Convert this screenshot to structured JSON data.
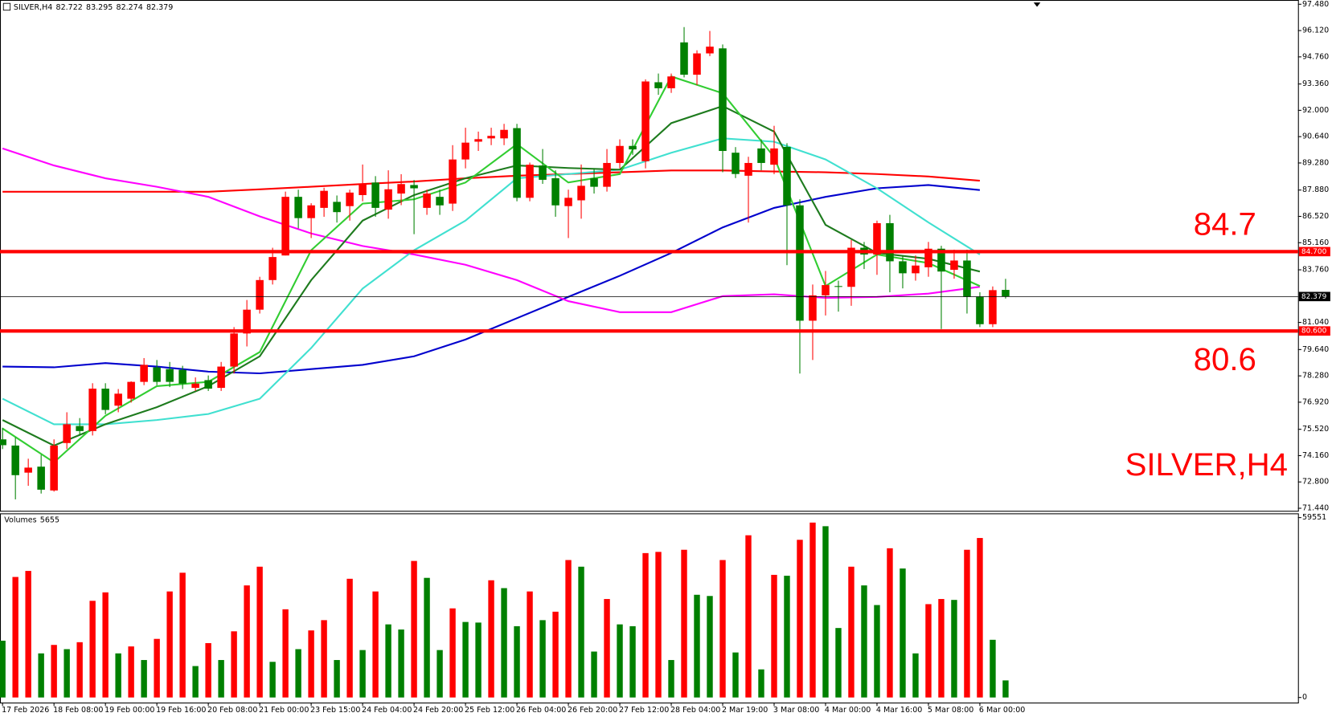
{
  "chart_data": [
    {
      "type": "candlestick",
      "title": "SILVER,H4",
      "categories": [
        "17 Feb 2026",
        null,
        null,
        null,
        "18 Feb 08:00",
        null,
        null,
        null,
        "19 Feb 00:00",
        null,
        null,
        null,
        "19 Feb 16:00",
        null,
        null,
        null,
        "20 Feb 08:00",
        null,
        null,
        null,
        "21 Feb 00:00",
        null,
        null,
        null,
        "23 Feb 15:00",
        null,
        null,
        null,
        "24 Feb 04:00",
        null,
        null,
        null,
        "24 Feb 20:00",
        null,
        null,
        null,
        "25 Feb 12:00",
        null,
        null,
        null,
        "26 Feb 04:00",
        null,
        null,
        null,
        "26 Feb 20:00",
        null,
        null,
        null,
        "27 Feb 12:00",
        null,
        null,
        null,
        "28 Feb 04:00",
        null,
        null,
        null,
        "2 Mar 19:00",
        null,
        null,
        null,
        "3 Mar 08:00",
        null,
        null,
        null,
        "4 Mar 00:00",
        null,
        null,
        null,
        "4 Mar 16:00",
        null,
        null,
        null,
        "5 Mar 08:00",
        null,
        null,
        null,
        "6 Mar 00:00",
        null,
        null
      ],
      "open": [
        75.0,
        74.68,
        73.28,
        73.59,
        72.36,
        74.81,
        75.69,
        75.43,
        77.62,
        76.74,
        77.1,
        77.97,
        78.72,
        78.63,
        78.59,
        77.66,
        78.06,
        77.66,
        78.76,
        80.47,
        81.7,
        83.23,
        84.5,
        87.53,
        86.43,
        86.96,
        87.27,
        87.05,
        87.62,
        88.27,
        86.87,
        87.7,
        88.14,
        86.96,
        87.53,
        87.18,
        89.46,
        90.38,
        90.55,
        90.55,
        91.08,
        87.48,
        89.15,
        88.49,
        87.05,
        87.35,
        88.49,
        88.05,
        89.28,
        90.16,
        89.37,
        93.45,
        93.14,
        95.51,
        93.84,
        94.94,
        95.2,
        89.81,
        88.62,
        90.03,
        89.19,
        90.11,
        87.09,
        81.13,
        82.44,
        82.92,
        82.88,
        84.9,
        84.55,
        86.17,
        84.2,
        83.58,
        83.89,
        84.85,
        83.76,
        84.24,
        82.36,
        80.95,
        82.722
      ],
      "high": [
        75.6,
        75.1,
        74.0,
        74.2,
        75.0,
        76.4,
        76.1,
        77.9,
        77.9,
        77.6,
        78.0,
        79.2,
        79.1,
        79.0,
        78.8,
        78.2,
        78.3,
        79.0,
        80.8,
        82.2,
        83.4,
        84.9,
        87.8,
        87.9,
        87.2,
        88.0,
        87.6,
        87.9,
        89.2,
        88.6,
        88.9,
        88.7,
        88.4,
        87.9,
        87.9,
        90.2,
        91.1,
        90.9,
        91.1,
        91.3,
        91.3,
        89.3,
        90.0,
        88.9,
        87.9,
        89.2,
        89.0,
        90.0,
        90.5,
        90.5,
        93.6,
        93.9,
        93.9,
        96.3,
        95.1,
        96.1,
        95.4,
        90.1,
        89.6,
        90.5,
        91.2,
        90.3,
        87.4,
        83.0,
        83.7,
        83.2,
        85.3,
        85.2,
        86.3,
        86.6,
        84.5,
        84.5,
        85.2,
        85.0,
        84.8,
        84.8,
        82.6,
        82.9,
        83.295
      ],
      "low": [
        74.5,
        71.9,
        72.6,
        72.2,
        72.3,
        74.5,
        75.2,
        75.2,
        76.3,
        76.4,
        76.9,
        77.8,
        77.8,
        77.7,
        77.6,
        77.5,
        77.5,
        77.5,
        78.4,
        79.8,
        81.5,
        83.0,
        84.5,
        85.9,
        85.4,
        86.5,
        86.2,
        86.3,
        87.3,
        86.5,
        86.4,
        87.1,
        85.6,
        86.6,
        86.6,
        86.8,
        89.0,
        89.9,
        90.2,
        90.2,
        87.3,
        87.3,
        88.2,
        86.5,
        85.4,
        86.4,
        87.7,
        87.8,
        89.0,
        89.7,
        89.0,
        92.8,
        92.9,
        93.7,
        93.3,
        94.8,
        88.8,
        88.5,
        86.2,
        88.9,
        88.7,
        84.0,
        78.4,
        79.1,
        81.4,
        81.6,
        81.9,
        83.8,
        83.5,
        82.6,
        82.8,
        83.2,
        83.4,
        80.7,
        83.3,
        81.5,
        80.8,
        80.8,
        82.274
      ],
      "close": [
        74.7,
        73.15,
        73.54,
        72.4,
        74.68,
        75.78,
        75.43,
        77.62,
        76.52,
        77.36,
        77.97,
        78.85,
        77.97,
        77.97,
        77.88,
        77.88,
        77.62,
        78.76,
        80.47,
        81.7,
        83.23,
        84.42,
        87.53,
        86.43,
        87.09,
        87.84,
        86.74,
        87.75,
        88.19,
        86.96,
        87.92,
        88.19,
        87.97,
        87.7,
        87.09,
        89.46,
        90.33,
        90.51,
        90.68,
        90.99,
        87.48,
        89.19,
        88.41,
        87.09,
        87.48,
        88.1,
        88.05,
        89.28,
        90.16,
        89.98,
        93.49,
        93.14,
        93.75,
        93.84,
        94.94,
        95.29,
        89.9,
        88.71,
        89.28,
        89.28,
        90.03,
        87.09,
        81.13,
        82.44,
        82.97,
        82.88,
        84.9,
        84.55,
        86.17,
        84.2,
        83.58,
        83.98,
        84.85,
        83.67,
        84.24,
        82.36,
        80.95,
        82.71,
        82.379
      ],
      "up_color": "#ff0000",
      "down_color": "#008000",
      "overlays": {
        "x": [
          "17 Feb 2026",
          "18 Feb 08:00",
          "19 Feb 00:00",
          "19 Feb 16:00",
          "20 Feb 08:00",
          "21 Feb 00:00",
          "23 Feb 15:00",
          "24 Feb 04:00",
          "24 Feb 20:00",
          "25 Feb 12:00",
          "26 Feb 04:00",
          "26 Feb 20:00",
          "27 Feb 12:00",
          "28 Feb 04:00",
          "2 Mar 19:00",
          "3 Mar 08:00",
          "4 Mar 00:00",
          "4 Mar 16:00",
          "5 Mar 08:00",
          "6 Mar 00:00"
        ],
        "series": [
          {
            "color": "#ff0000",
            "values": [
              87.79,
              87.79,
              87.79,
              87.79,
              87.79,
              87.92,
              88.05,
              88.19,
              88.32,
              88.49,
              88.62,
              88.71,
              88.8,
              88.89,
              88.89,
              88.84,
              88.8,
              88.71,
              88.58,
              88.36
            ]
          },
          {
            "color": "#0000cd",
            "values": [
              78.76,
              78.72,
              78.94,
              78.76,
              78.5,
              78.41,
              78.63,
              78.85,
              79.29,
              80.16,
              81.26,
              82.36,
              83.45,
              84.63,
              85.95,
              86.96,
              87.53,
              87.97,
              88.14,
              87.88
            ]
          },
          {
            "color": "#ff00ff",
            "values": [
              90.03,
              89.15,
              88.49,
              88.05,
              87.53,
              86.52,
              85.64,
              84.99,
              84.55,
              84.02,
              83.23,
              82.14,
              81.57,
              81.57,
              82.4,
              82.49,
              82.31,
              82.36,
              82.53,
              82.88
            ]
          },
          {
            "color": "#40e0d0",
            "values": [
              77.1,
              75.78,
              75.78,
              76.0,
              76.31,
              77.1,
              79.72,
              82.79,
              84.77,
              86.3,
              88.49,
              88.71,
              88.93,
              89.81,
              90.55,
              90.38,
              89.46,
              87.97,
              86.21,
              84.55
            ]
          },
          {
            "color": "#1e7b1e",
            "values": [
              76.0,
              74.68,
              75.78,
              76.66,
              77.75,
              79.29,
              83.23,
              86.3,
              87.62,
              88.49,
              89.15,
              89.02,
              88.93,
              91.34,
              92.22,
              90.9,
              86.08,
              84.63,
              84.33,
              83.67
            ]
          },
          {
            "color": "#32cd32",
            "values": [
              75.56,
              73.81,
              76.22,
              77.75,
              77.97,
              79.51,
              84.77,
              87.18,
              87.4,
              88.27,
              90.25,
              88.27,
              88.71,
              93.75,
              92.88,
              89.59,
              82.92,
              84.55,
              84.11,
              82.92
            ]
          }
        ]
      },
      "levels": [
        {
          "value": 84.7,
          "label": "84.700",
          "color": "#ff0000"
        },
        {
          "value": 80.6,
          "label": "80.600",
          "color": "#ff0000"
        }
      ],
      "ylim": [
        71.44,
        97.48
      ],
      "yticks": [
        {
          "value": 97.48,
          "label": "97.480"
        },
        {
          "value": 96.12,
          "label": "96.120"
        },
        {
          "value": 94.76,
          "label": "94.760"
        },
        {
          "value": 93.36,
          "label": "93.360"
        },
        {
          "value": 92.0,
          "label": "92.000"
        },
        {
          "value": 90.64,
          "label": "90.640"
        },
        {
          "value": 89.28,
          "label": "89.280"
        },
        {
          "value": 87.88,
          "label": "87.880"
        },
        {
          "value": 86.52,
          "label": "86.520"
        },
        {
          "value": 85.16,
          "label": "85.160"
        },
        {
          "value": 83.76,
          "label": "83.760"
        },
        {
          "value": 81.04,
          "label": "81.040"
        },
        {
          "value": 79.64,
          "label": "79.640"
        },
        {
          "value": 78.28,
          "label": "78.280"
        },
        {
          "value": 76.92,
          "label": "76.920"
        },
        {
          "value": 75.52,
          "label": "75.520"
        },
        {
          "value": 74.16,
          "label": "74.160"
        },
        {
          "value": 72.8,
          "label": "72.800"
        },
        {
          "value": 71.44,
          "label": "71.440"
        }
      ]
    },
    {
      "type": "bar",
      "title": "Volumes",
      "values": [
        18800,
        39900,
        41900,
        14600,
        17400,
        16000,
        18300,
        32000,
        34800,
        14600,
        16900,
        12400,
        19400,
        35100,
        41300,
        10400,
        18000,
        12400,
        21900,
        37100,
        43300,
        11800,
        29200,
        16000,
        22200,
        25600,
        12400,
        39300,
        15700,
        35100,
        24200,
        22500,
        45200,
        39600,
        15700,
        29500,
        25000,
        24800,
        38800,
        36200,
        23600,
        35100,
        25600,
        28400,
        45500,
        43300,
        15200,
        32600,
        24200,
        23600,
        47800,
        48200,
        12400,
        48900,
        34000,
        33600,
        45500,
        14900,
        53700,
        9300,
        40600,
        40300,
        52200,
        57900,
        56700,
        23000,
        43300,
        37100,
        30600,
        49400,
        42700,
        14600,
        30900,
        32600,
        32300,
        48900,
        52800,
        19100,
        5655
      ],
      "rising_color": "#ff0000",
      "falling_color": "#008000",
      "ylim": [
        0,
        59551
      ],
      "yticks": [
        59551,
        0
      ]
    }
  ]
}
